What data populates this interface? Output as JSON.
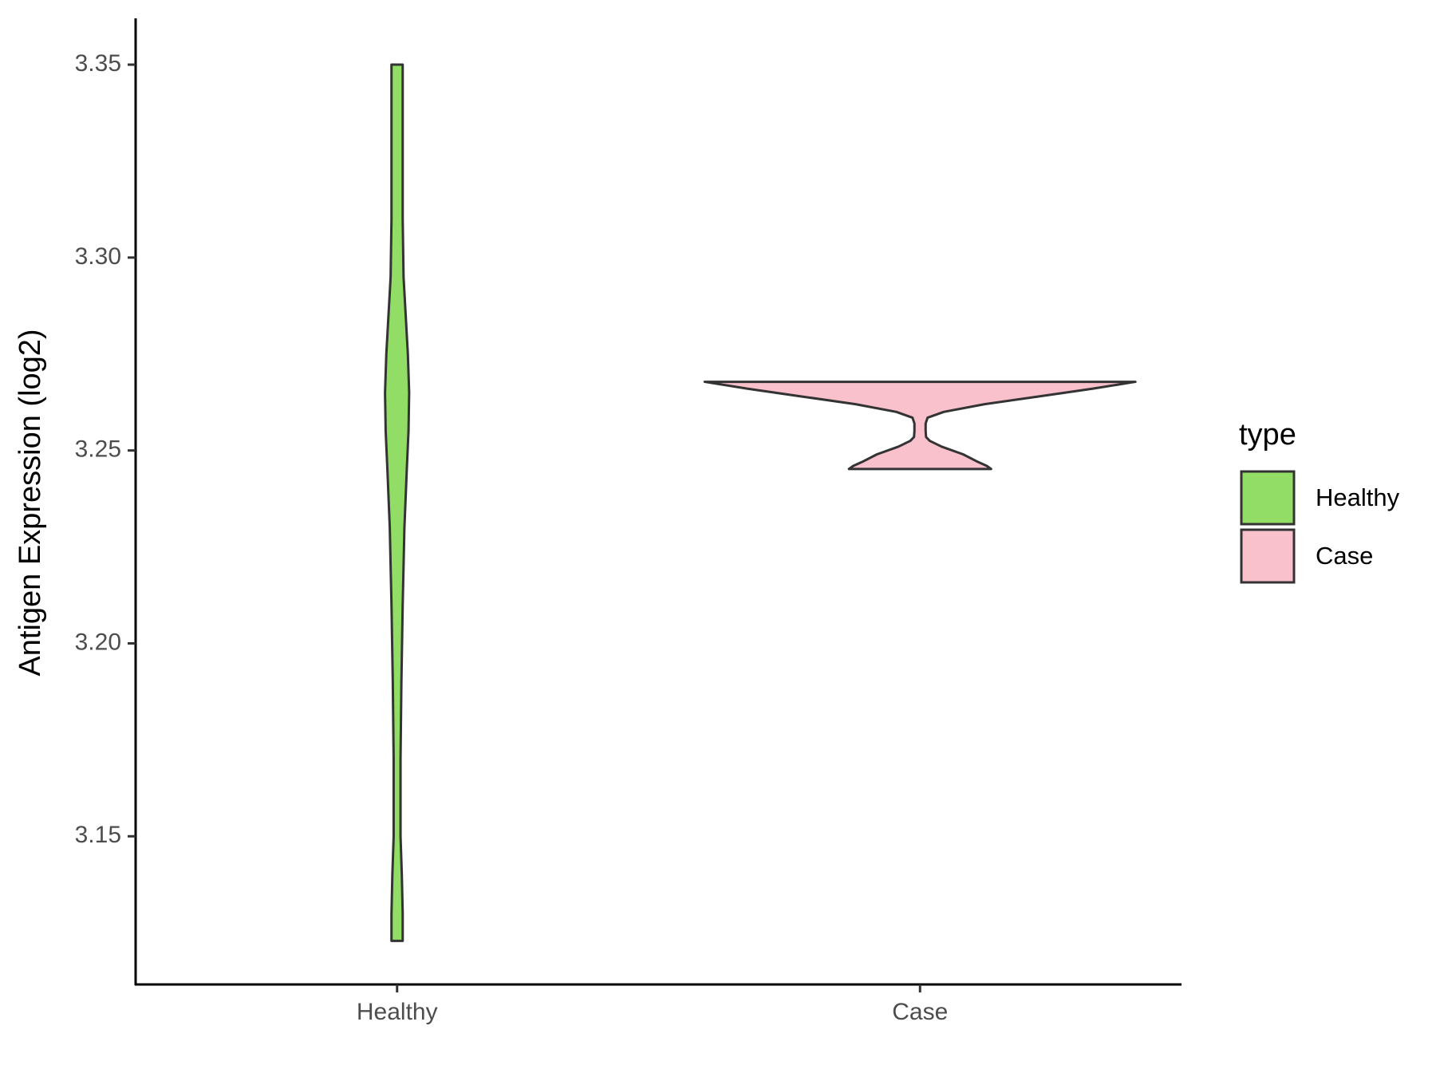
{
  "chart_data": {
    "type": "violin",
    "y_label": "Antigen Expression (log2)",
    "categories": [
      "Healthy",
      "Case"
    ],
    "legend_title": "type",
    "legend_position": "right",
    "ylim": [
      3.1116,
      3.362
    ],
    "yticks": [
      3.15,
      {
        "value": 3.2,
        "label": "3.20"
      },
      3.25,
      {
        "value": 3.3,
        "label": "3.30"
      },
      3.35
    ],
    "series": [
      {
        "name": "Healthy",
        "color": "#92dd66",
        "profile_y": [
          3.1229,
          3.13,
          3.14,
          3.15,
          3.17,
          3.19,
          3.21,
          3.23,
          3.245,
          3.255,
          3.265,
          3.275,
          3.285,
          3.295,
          3.31,
          3.33,
          3.35
        ],
        "profile_width": [
          0.026,
          0.026,
          0.022,
          0.016,
          0.016,
          0.02,
          0.026,
          0.034,
          0.045,
          0.053,
          0.056,
          0.05,
          0.04,
          0.03,
          0.026,
          0.026,
          0.026
        ]
      },
      {
        "name": "Case",
        "color": "#f8c1cc",
        "profile_y": [
          3.2452,
          3.246,
          3.247,
          3.249,
          3.251,
          3.2525,
          3.2535,
          3.255,
          3.257,
          3.2585,
          3.26,
          3.262,
          3.264,
          3.266,
          3.2678
        ],
        "profile_width": [
          0.33,
          0.31,
          0.27,
          0.2,
          0.1,
          0.045,
          0.028,
          0.026,
          0.026,
          0.035,
          0.11,
          0.3,
          0.55,
          0.8,
          1.0
        ]
      }
    ]
  }
}
